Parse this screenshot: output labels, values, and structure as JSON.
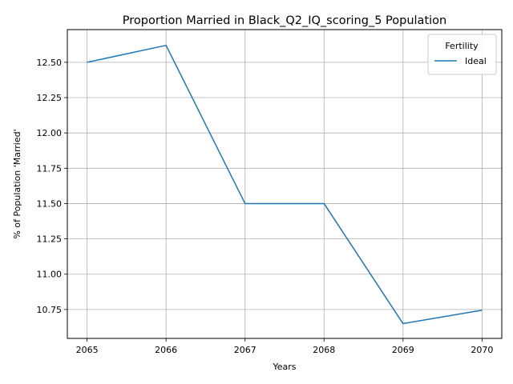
{
  "chart_data": {
    "type": "line",
    "title": "Proportion Married in Black_Q2_IQ_scoring_5 Population",
    "xlabel": "Years",
    "ylabel": "% of Population 'Married'",
    "x": [
      2065,
      2066,
      2067,
      2068,
      2069,
      2070
    ],
    "xticks": [
      "2065",
      "2066",
      "2067",
      "2068",
      "2069",
      "2070"
    ],
    "yticks": [
      "10.75",
      "11.00",
      "11.25",
      "11.50",
      "11.75",
      "12.00",
      "12.25",
      "12.50"
    ],
    "xlim": [
      2064.75,
      2070.25
    ],
    "ylim": [
      10.5455,
      12.7315
    ],
    "grid": true,
    "legend": {
      "title": "Fertility",
      "placement": "top-right"
    },
    "series": [
      {
        "name": "Ideal",
        "color": "#1f77b4",
        "values": [
          12.5,
          12.62,
          11.5,
          11.5,
          10.65,
          10.745
        ]
      }
    ]
  }
}
